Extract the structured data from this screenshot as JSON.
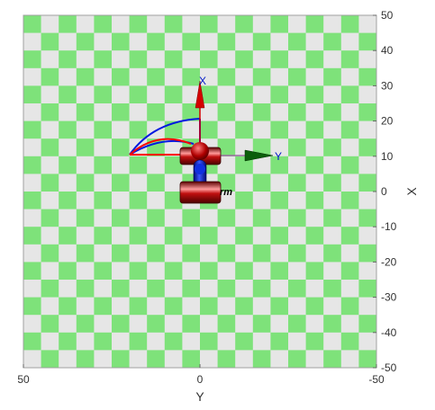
{
  "view": {
    "axis_horizontal_label": "Y",
    "axis_vertical_label": "X",
    "x_ticks": [
      "50",
      "0",
      "-50"
    ],
    "y_ticks": [
      "50",
      "40",
      "30",
      "20",
      "10",
      "0",
      "-10",
      "-20",
      "-30",
      "-40",
      "-50"
    ],
    "range": {
      "y_axis_horizontal": [
        50,
        -50
      ],
      "x_axis_vertical": [
        -50,
        50
      ]
    },
    "floor_pattern": "checkerboard",
    "colors": {
      "check_a": "#7ee27a",
      "check_b": "#e6e6e6",
      "frame_red": "#8b0000",
      "link_blue": "#0018c8",
      "axis_x_color": "#d40000",
      "axis_y_color": "#0b5e0b",
      "workspace_blue": "#0000ff",
      "workspace_red": "#ff0000"
    }
  },
  "robot": {
    "name_fragment": "rm",
    "frame_x_label": "X",
    "frame_y_label": "Y"
  }
}
